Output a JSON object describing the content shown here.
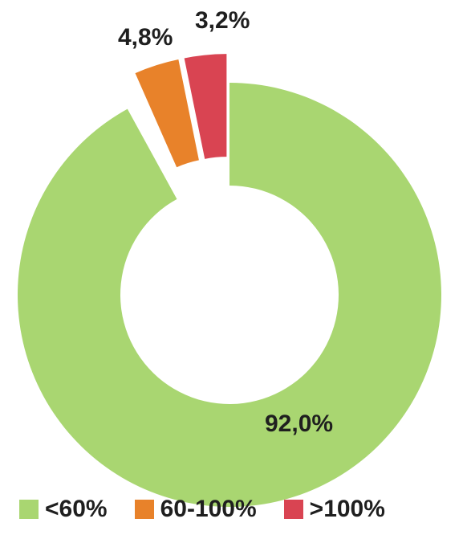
{
  "chart_data": {
    "type": "pie",
    "variant": "donut",
    "exploded": true,
    "legend_position": "bottom",
    "slices": [
      {
        "category": "<60%",
        "value": 92.0,
        "label": "92,0%",
        "color": "#a9d671"
      },
      {
        "category": "60-100%",
        "value": 4.8,
        "label": "4,8%",
        "color": "#e8822a"
      },
      {
        "category": ">100%",
        "value": 3.2,
        "label": "3,2%",
        "color": "#d94452"
      }
    ]
  }
}
